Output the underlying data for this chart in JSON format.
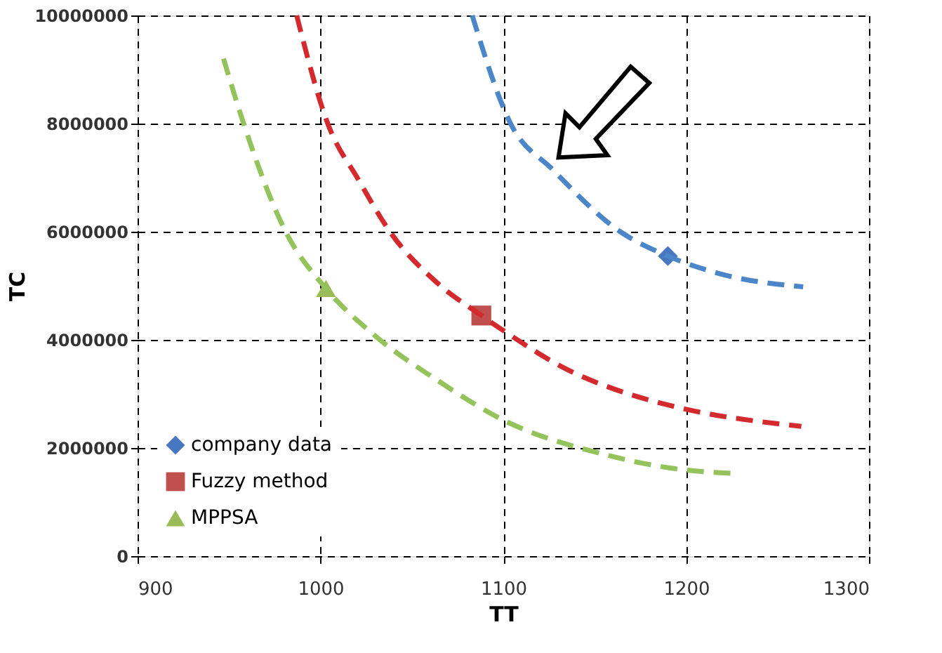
{
  "chart_data": {
    "type": "line",
    "xlabel": "TT",
    "ylabel": "TC",
    "xlim": [
      900,
      1300
    ],
    "xticks": [
      900,
      1000,
      1100,
      1200,
      1300
    ],
    "ylim": [
      0,
      10000000
    ],
    "yticks": [
      0,
      2000000,
      4000000,
      6000000,
      8000000,
      10000000
    ],
    "grid": true,
    "legend": "bottom left",
    "series": [
      {
        "name": "company data",
        "type": "scatter",
        "marker": "diamond",
        "color": "#4677c0",
        "x": [
          1190
        ],
        "values": [
          5550000
        ]
      },
      {
        "name": "Fuzzy method",
        "type": "scatter",
        "marker": "square",
        "color": "#c0504d",
        "x": [
          1088
        ],
        "values": [
          4450000
        ]
      },
      {
        "name": "MPPSA",
        "type": "scatter",
        "marker": "triangle",
        "color": "#9bbb59",
        "x": [
          1003
        ],
        "values": [
          4950000
        ]
      },
      {
        "line_style": "dashed",
        "marker": "none",
        "color": "#4a86c8",
        "x": [
          1083,
          1104,
          1127,
          1164,
          1190,
          1221,
          1264
        ],
        "values": [
          10000000,
          8000000,
          7150000,
          6000000,
          5550000,
          5200000,
          4980000
        ]
      },
      {
        "line_style": "dashed",
        "marker": "none",
        "color": "#d42a2e",
        "x": [
          987,
          1004,
          1021,
          1038,
          1064,
          1088,
          1101,
          1135,
          1164,
          1193,
          1263
        ],
        "values": [
          10000000,
          8000000,
          6950000,
          6000000,
          5050000,
          4450000,
          4150000,
          3450000,
          3050000,
          2770000,
          2400000
        ]
      },
      {
        "line_style": "dashed",
        "marker": "none",
        "color": "#93c35a",
        "x": [
          947,
          958,
          981,
          1003,
          1029,
          1064,
          1101,
          1153,
          1198,
          1226
        ],
        "values": [
          9200000,
          8000000,
          6000000,
          4950000,
          4100000,
          3250000,
          2500000,
          1900000,
          1600000,
          1530000
        ]
      }
    ]
  }
}
